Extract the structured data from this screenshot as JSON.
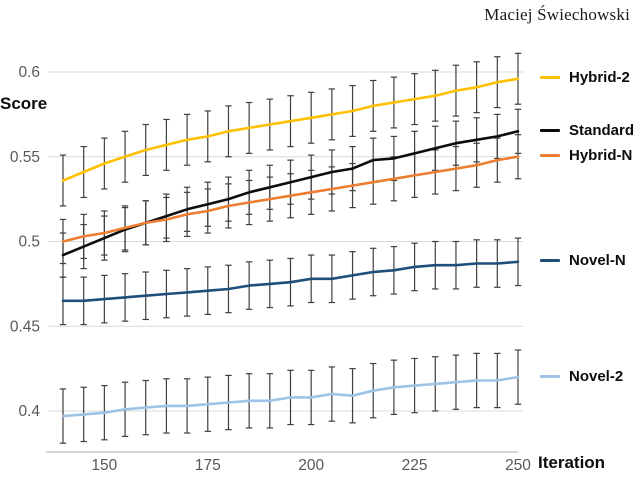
{
  "header": {
    "author": "Maciej Świechowski"
  },
  "chart_data": {
    "type": "line",
    "title": "",
    "xlabel": "Iteration",
    "ylabel": "Score",
    "x": [
      140,
      145,
      150,
      155,
      160,
      165,
      170,
      175,
      180,
      185,
      190,
      195,
      200,
      205,
      210,
      215,
      220,
      225,
      230,
      235,
      240,
      245,
      250
    ],
    "xlim": [
      136,
      252
    ],
    "ylim": [
      0.376,
      0.615
    ],
    "xtick_values": [
      150,
      175,
      200,
      225,
      250
    ],
    "xtick_labels": [
      "150",
      "175",
      "200",
      "225",
      "250"
    ],
    "ytick_values": [
      0.6,
      0.55,
      0.5,
      0.45,
      0.4
    ],
    "ytick_labels": [
      "0.6",
      "0.55",
      "0.5",
      "0.45",
      "0.4"
    ],
    "grid": true,
    "legend_position": "right",
    "colors": {
      "grid": "#d9d9d9",
      "axis_line": "#bfbfbf",
      "tick_text": "#595959",
      "error_bar": "#3f3f3f"
    },
    "series": [
      {
        "name": "Hybrid-2",
        "color": "#ffc000",
        "error": 0.015,
        "values": [
          0.536,
          0.541,
          0.546,
          0.55,
          0.554,
          0.557,
          0.56,
          0.562,
          0.565,
          0.567,
          0.569,
          0.571,
          0.573,
          0.575,
          0.577,
          0.58,
          0.582,
          0.584,
          0.586,
          0.589,
          0.591,
          0.594,
          0.596
        ]
      },
      {
        "name": "Standard",
        "color": "#0d0d0d",
        "error": 0.013,
        "values": [
          0.492,
          0.497,
          0.502,
          0.507,
          0.511,
          0.515,
          0.519,
          0.522,
          0.525,
          0.529,
          0.532,
          0.535,
          0.538,
          0.541,
          0.543,
          0.548,
          0.549,
          0.552,
          0.555,
          0.558,
          0.56,
          0.562,
          0.565
        ]
      },
      {
        "name": "Hybrid-N",
        "color": "#ed7d31",
        "error": 0.013,
        "values": [
          0.5,
          0.503,
          0.505,
          0.508,
          0.511,
          0.513,
          0.516,
          0.518,
          0.521,
          0.523,
          0.525,
          0.527,
          0.529,
          0.531,
          0.533,
          0.535,
          0.537,
          0.539,
          0.541,
          0.543,
          0.545,
          0.548,
          0.55
        ]
      },
      {
        "name": "Novel-N",
        "color": "#1f4e79",
        "error": 0.014,
        "values": [
          0.465,
          0.465,
          0.466,
          0.467,
          0.468,
          0.469,
          0.47,
          0.471,
          0.472,
          0.474,
          0.475,
          0.476,
          0.478,
          0.478,
          0.48,
          0.482,
          0.483,
          0.485,
          0.486,
          0.486,
          0.487,
          0.487,
          0.488
        ]
      },
      {
        "name": "Novel-2",
        "color": "#9dc3e6",
        "error": 0.016,
        "values": [
          0.397,
          0.398,
          0.399,
          0.401,
          0.402,
          0.403,
          0.403,
          0.404,
          0.405,
          0.406,
          0.406,
          0.408,
          0.408,
          0.41,
          0.409,
          0.412,
          0.414,
          0.415,
          0.416,
          0.417,
          0.418,
          0.418,
          0.42
        ]
      }
    ]
  }
}
